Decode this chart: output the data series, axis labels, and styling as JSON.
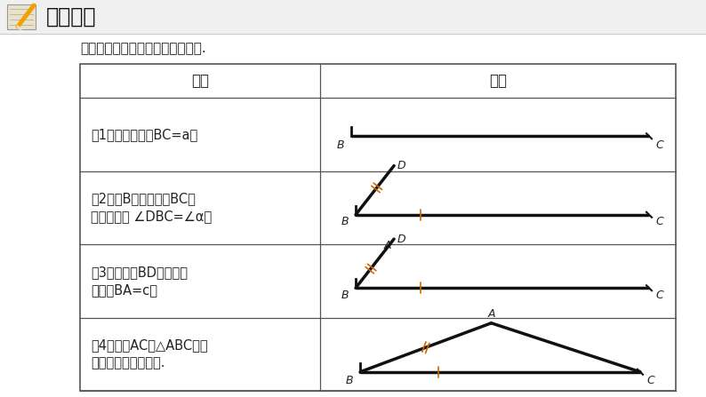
{
  "bg_color": "#ffffff",
  "title_text": "探究新知",
  "subtitle": "请按照给出的作法作出相应的图形.",
  "col1_header": "作法",
  "col2_header": "示范",
  "row1_line1": "（1）作一条线段BC=a；",
  "row2_line1": "（2）以B为顶点，以BC为",
  "row2_line2": "　　一边作 ∠DBC=∠α；",
  "row3_line1": "（3）在射线BD上截取线",
  "row3_line2": "　　段BA=c；",
  "row4_line1": "（4）连接AC．△ABC就是",
  "row4_line2": "　　所求作的三角形.",
  "orange_color": "#CD6600",
  "tick_color": "#CD6600",
  "line_color": "#111111",
  "label_color": "#222222",
  "grid_color": "#555555",
  "header_bg": "#f8f8f8",
  "title_color": "#222222",
  "fig_w": 7.94,
  "fig_h": 4.47,
  "dpi": 100
}
